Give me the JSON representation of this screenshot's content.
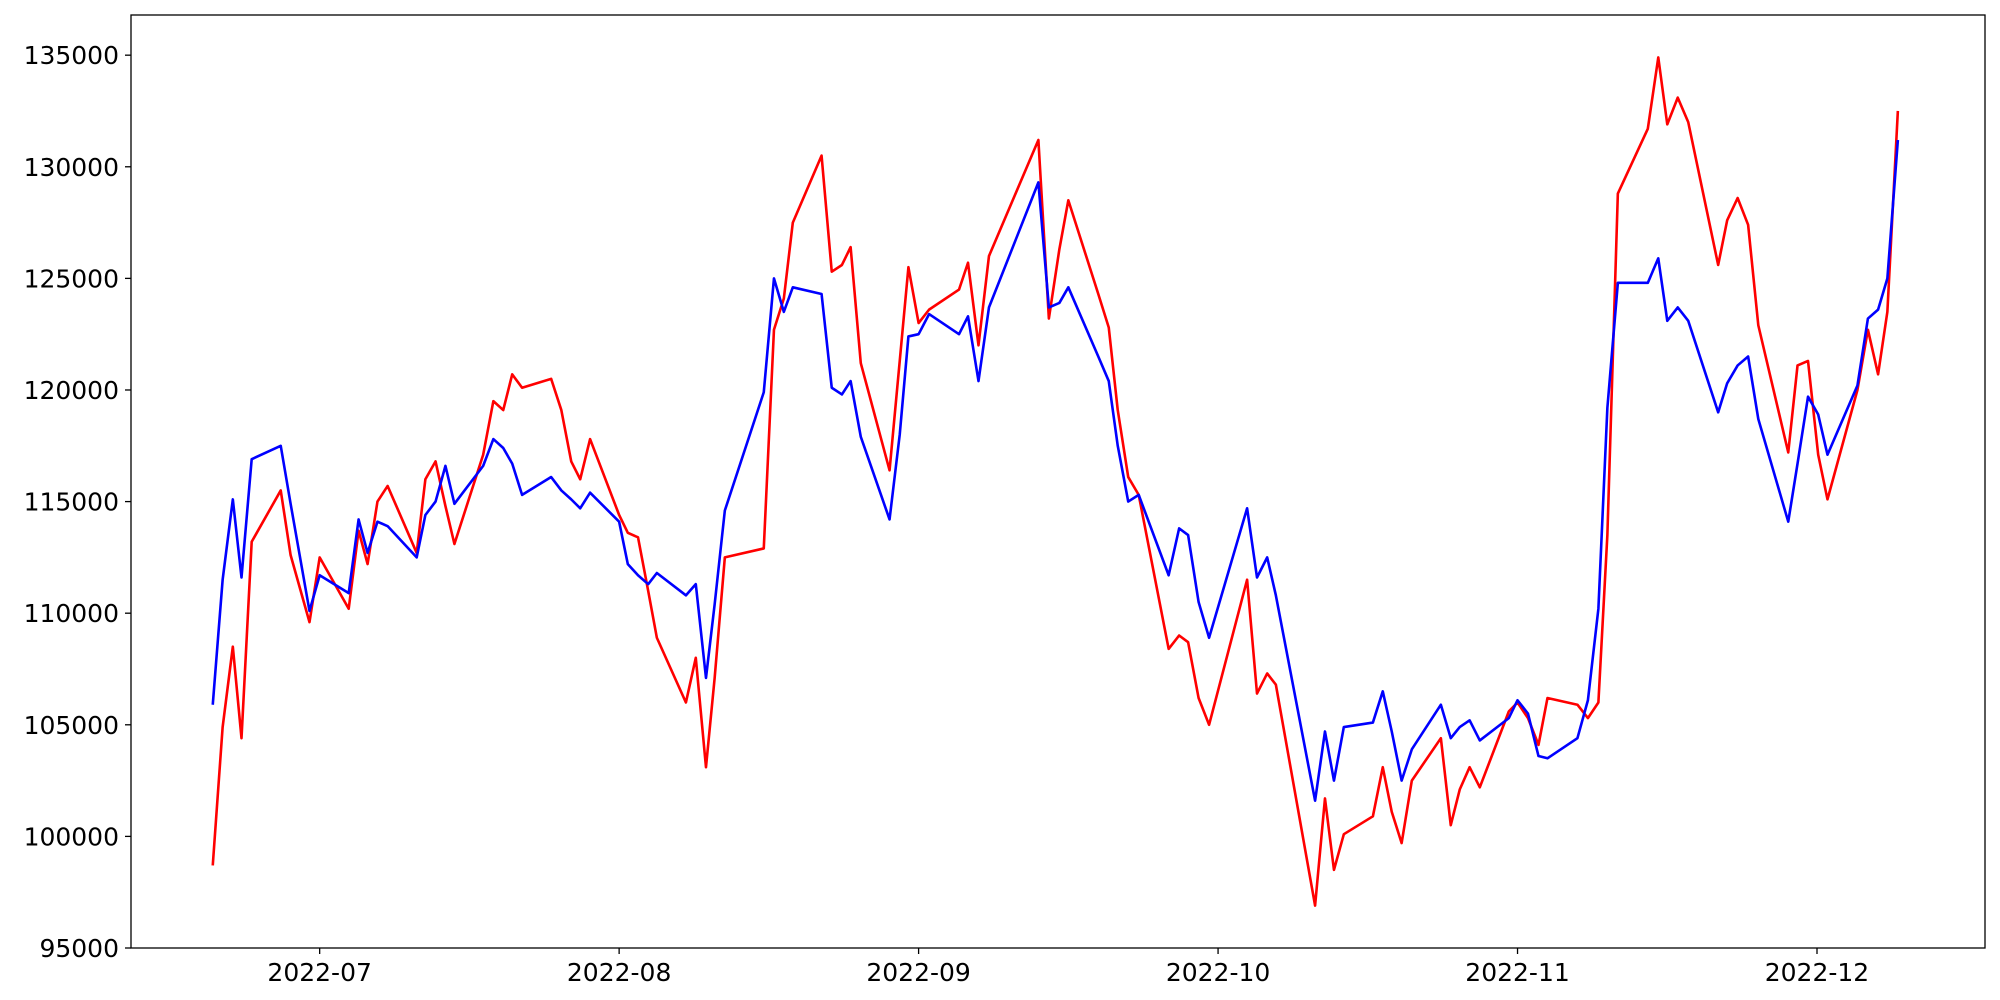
{
  "chart_data": {
    "type": "line",
    "x": [
      6.643,
      6.676,
      6.71,
      6.739,
      6.773,
      6.87,
      6.903,
      6.966,
      7.0,
      7.097,
      7.13,
      7.16,
      7.193,
      7.227,
      7.324,
      7.353,
      7.387,
      7.42,
      7.45,
      7.546,
      7.58,
      7.613,
      7.643,
      7.676,
      7.773,
      7.807,
      7.84,
      7.87,
      7.903,
      8.0,
      8.029,
      8.063,
      8.097,
      8.126,
      8.223,
      8.256,
      8.29,
      8.319,
      8.353,
      8.483,
      8.517,
      8.55,
      8.58,
      8.676,
      8.71,
      8.744,
      8.773,
      8.807,
      8.903,
      8.937,
      8.966,
      9.0,
      9.035,
      9.135,
      9.165,
      9.2,
      9.235,
      9.4,
      9.435,
      9.47,
      9.5,
      9.6,
      9.635,
      9.665,
      9.7,
      9.735,
      9.835,
      9.87,
      9.9,
      9.935,
      9.97,
      10.097,
      10.13,
      10.164,
      10.193,
      10.324,
      10.357,
      10.387,
      10.42,
      10.517,
      10.55,
      10.58,
      10.613,
      10.647,
      10.744,
      10.777,
      10.807,
      10.84,
      10.874,
      10.971,
      11.0,
      11.035,
      11.07,
      11.1,
      11.2,
      11.235,
      11.27,
      11.3,
      11.335,
      11.435,
      11.47,
      11.5,
      11.535,
      11.57,
      11.67,
      11.7,
      11.735,
      11.77,
      11.804,
      11.904,
      11.935,
      11.97,
      12.004,
      12.035,
      12.135,
      12.17,
      12.204,
      12.235,
      12.27
    ],
    "series": [
      {
        "color": "red",
        "values": [
          98700,
          104900,
          108500,
          104400,
          113200,
          115500,
          112600,
          109600,
          112500,
          110200,
          113700,
          112200,
          115000,
          115700,
          112700,
          116000,
          116800,
          114800,
          113100,
          117100,
          119500,
          119100,
          120700,
          120100,
          120500,
          119100,
          116800,
          116000,
          117800,
          114400,
          113600,
          113400,
          111000,
          108900,
          106000,
          108000,
          103100,
          107100,
          112500,
          112900,
          122700,
          124100,
          127500,
          130500,
          125300,
          125600,
          126400,
          121200,
          116400,
          121300,
          125500,
          123000,
          123600,
          124500,
          125700,
          122000,
          126000,
          131200,
          123200,
          126300,
          128500,
          124300,
          122800,
          119100,
          116100,
          115300,
          108400,
          109000,
          108700,
          106200,
          105000,
          111500,
          106400,
          107300,
          106800,
          96900,
          101700,
          98500,
          100100,
          100900,
          103100,
          101100,
          99700,
          102500,
          104400,
          100500,
          102100,
          103100,
          102200,
          105600,
          106000,
          105300,
          104100,
          106200,
          105900,
          105300,
          106000,
          113500,
          128800,
          131700,
          134900,
          131900,
          133100,
          132000,
          125600,
          127600,
          128600,
          127400,
          122900,
          117200,
          121100,
          121300,
          117100,
          115100,
          120000,
          122700,
          120700,
          123500,
          132500
        ]
      },
      {
        "color": "blue",
        "values": [
          105900,
          111500,
          115100,
          111600,
          116900,
          117500,
          114900,
          110100,
          111700,
          110900,
          114200,
          112700,
          114100,
          113900,
          112500,
          114400,
          115000,
          116600,
          114900,
          116600,
          117800,
          117400,
          116700,
          115300,
          116100,
          115500,
          115100,
          114700,
          115400,
          114100,
          112200,
          111700,
          111300,
          111800,
          110800,
          111300,
          107100,
          110400,
          114600,
          119900,
          125000,
          123500,
          124600,
          124300,
          120100,
          119800,
          120400,
          117900,
          114200,
          118000,
          122400,
          122500,
          123400,
          122500,
          123300,
          120400,
          123700,
          129300,
          123700,
          123900,
          124600,
          121500,
          120400,
          117500,
          115000,
          115300,
          111700,
          113800,
          113500,
          110500,
          108900,
          114700,
          111600,
          112500,
          110800,
          101600,
          104700,
          102500,
          104900,
          105100,
          106500,
          104700,
          102500,
          103900,
          105900,
          104400,
          104900,
          105200,
          104300,
          105300,
          106100,
          105500,
          103600,
          103500,
          104400,
          106100,
          110200,
          119200,
          124800,
          124800,
          125900,
          123100,
          123700,
          123100,
          119000,
          120300,
          121100,
          121500,
          118700,
          114100,
          116700,
          119700,
          118900,
          117100,
          120200,
          123200,
          123600,
          125000,
          131200
        ]
      }
    ],
    "xlim": [
      6.37,
      12.561
    ],
    "xticks": [
      {
        "value": 7,
        "label": "2022-07"
      },
      {
        "value": 8,
        "label": "2022-08"
      },
      {
        "value": 9,
        "label": "2022-09"
      },
      {
        "value": 10,
        "label": "2022-10"
      },
      {
        "value": 11,
        "label": "2022-11"
      },
      {
        "value": 12,
        "label": "2022-12"
      }
    ],
    "ylim": [
      95000,
      136800
    ],
    "yticks": [
      95000,
      100000,
      105000,
      110000,
      115000,
      120000,
      125000,
      130000,
      135000
    ],
    "grid": false
  }
}
